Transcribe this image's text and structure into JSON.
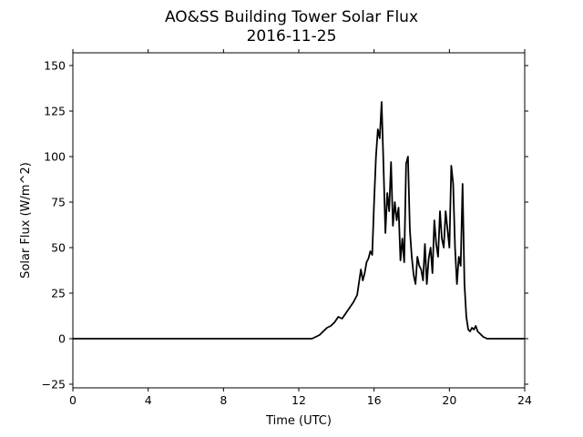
{
  "chart_data": {
    "type": "line",
    "title": "AO&SS Building Tower Solar Flux",
    "subtitle": "2016-11-25",
    "xlabel": "Time (UTC)",
    "ylabel": "Solar Flux (W/m^2)",
    "xlim": [
      0,
      24
    ],
    "ylim": [
      -27,
      157
    ],
    "xticks": [
      0,
      4,
      8,
      12,
      16,
      20,
      24
    ],
    "yticks": [
      -25,
      0,
      25,
      50,
      75,
      100,
      125,
      150
    ],
    "grid": false,
    "line_color": "#000000",
    "series": [
      {
        "x": [
          0,
          12.7,
          12.9,
          13.1,
          13.3,
          13.5,
          13.7,
          13.9,
          14.1,
          14.3,
          14.5,
          14.7,
          14.9,
          15.1,
          15.3,
          15.4,
          15.5,
          15.6,
          15.7,
          15.8,
          15.9,
          16.0,
          16.1,
          16.2,
          16.3,
          16.4,
          16.5,
          16.6,
          16.7,
          16.8,
          16.9,
          17.0,
          17.1,
          17.2,
          17.3,
          17.4,
          17.5,
          17.6,
          17.7,
          17.8,
          17.9,
          18.0,
          18.1,
          18.2,
          18.3,
          18.4,
          18.5,
          18.6,
          18.7,
          18.8,
          18.9,
          19.0,
          19.1,
          19.2,
          19.3,
          19.4,
          19.5,
          19.6,
          19.7,
          19.8,
          19.9,
          20.0,
          20.1,
          20.2,
          20.3,
          20.4,
          20.5,
          20.6,
          20.7,
          20.8,
          20.9,
          21.0,
          21.1,
          21.2,
          21.3,
          21.4,
          21.5,
          21.6,
          21.7,
          21.8,
          21.9,
          22.0,
          22.1,
          22.3,
          22.5,
          22.8,
          23.2,
          24.0
        ],
        "y": [
          0,
          0,
          1,
          2,
          4,
          6,
          7,
          9,
          12,
          11,
          14,
          17,
          20,
          24,
          38,
          32,
          36,
          42,
          44,
          48,
          46,
          75,
          100,
          115,
          110,
          130,
          95,
          58,
          80,
          70,
          97,
          62,
          75,
          65,
          72,
          43,
          55,
          42,
          96,
          100,
          60,
          45,
          35,
          30,
          45,
          40,
          38,
          32,
          52,
          30,
          44,
          50,
          36,
          65,
          52,
          45,
          70,
          55,
          50,
          70,
          60,
          50,
          95,
          85,
          50,
          30,
          45,
          40,
          85,
          30,
          12,
          5,
          4,
          6,
          5,
          7,
          4,
          3,
          2,
          1,
          0.5,
          0,
          0,
          0,
          0,
          0,
          0,
          0
        ]
      }
    ]
  }
}
